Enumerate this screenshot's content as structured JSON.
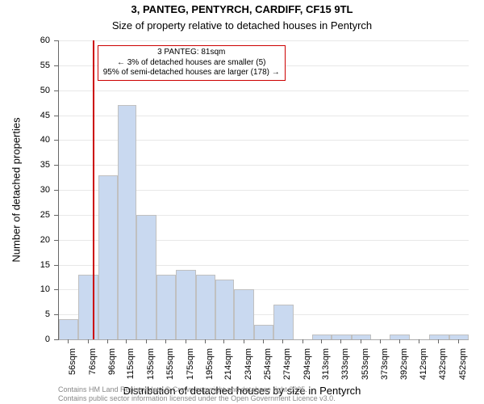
{
  "title_line1": "3, PANTEG, PENTYRCH, CARDIFF, CF15 9TL",
  "title_line2": "Size of property relative to detached houses in Pentyrch",
  "title_fontsize": 13,
  "subtitle_fontsize": 13,
  "chart": {
    "type": "histogram",
    "background_color": "#ffffff",
    "plot_bg": "#ffffff",
    "bar_fill": "#c9d9f0",
    "bar_stroke": "#c0c0c0",
    "bar_stroke_width": 1,
    "grid_color": "#d9d9d9",
    "marker_color": "#cc0000",
    "annotation_border": "#cc0000",
    "x_min": 46,
    "x_max": 462,
    "y_min": 0,
    "y_max": 60,
    "y_ticks": [
      0,
      5,
      10,
      15,
      20,
      25,
      30,
      35,
      40,
      45,
      50,
      55,
      60
    ],
    "x_ticks": [
      {
        "pos": 56,
        "label": "56sqm"
      },
      {
        "pos": 76,
        "label": "76sqm"
      },
      {
        "pos": 96,
        "label": "96sqm"
      },
      {
        "pos": 115,
        "label": "115sqm"
      },
      {
        "pos": 135,
        "label": "135sqm"
      },
      {
        "pos": 155,
        "label": "155sqm"
      },
      {
        "pos": 175,
        "label": "175sqm"
      },
      {
        "pos": 195,
        "label": "195sqm"
      },
      {
        "pos": 214,
        "label": "214sqm"
      },
      {
        "pos": 234,
        "label": "234sqm"
      },
      {
        "pos": 254,
        "label": "254sqm"
      },
      {
        "pos": 274,
        "label": "274sqm"
      },
      {
        "pos": 294,
        "label": "294sqm"
      },
      {
        "pos": 313,
        "label": "313sqm"
      },
      {
        "pos": 333,
        "label": "333sqm"
      },
      {
        "pos": 353,
        "label": "353sqm"
      },
      {
        "pos": 373,
        "label": "373sqm"
      },
      {
        "pos": 392,
        "label": "392sqm"
      },
      {
        "pos": 412,
        "label": "412sqm"
      },
      {
        "pos": 432,
        "label": "432sqm"
      },
      {
        "pos": 452,
        "label": "452sqm"
      }
    ],
    "bars": [
      {
        "x0": 46,
        "x1": 66,
        "y": 4
      },
      {
        "x0": 66,
        "x1": 86,
        "y": 13
      },
      {
        "x0": 86,
        "x1": 106,
        "y": 33
      },
      {
        "x0": 106,
        "x1": 125,
        "y": 47
      },
      {
        "x0": 125,
        "x1": 145,
        "y": 25
      },
      {
        "x0": 145,
        "x1": 165,
        "y": 13
      },
      {
        "x0": 165,
        "x1": 185,
        "y": 14
      },
      {
        "x0": 185,
        "x1": 205,
        "y": 13
      },
      {
        "x0": 205,
        "x1": 224,
        "y": 12
      },
      {
        "x0": 224,
        "x1": 244,
        "y": 10
      },
      {
        "x0": 244,
        "x1": 264,
        "y": 3
      },
      {
        "x0": 264,
        "x1": 284,
        "y": 7
      },
      {
        "x0": 284,
        "x1": 303,
        "y": 0
      },
      {
        "x0": 303,
        "x1": 323,
        "y": 1
      },
      {
        "x0": 323,
        "x1": 343,
        "y": 1
      },
      {
        "x0": 343,
        "x1": 363,
        "y": 1
      },
      {
        "x0": 363,
        "x1": 382,
        "y": 0
      },
      {
        "x0": 382,
        "x1": 402,
        "y": 1
      },
      {
        "x0": 402,
        "x1": 422,
        "y": 0
      },
      {
        "x0": 422,
        "x1": 442,
        "y": 1
      },
      {
        "x0": 442,
        "x1": 462,
        "y": 1
      }
    ],
    "marker_x": 81,
    "y_label": "Number of detached properties",
    "x_label": "Distribution of detached houses by size in Pentyrch",
    "axis_label_fontsize": 13,
    "tick_fontsize": 11
  },
  "annotation": {
    "line1": "3 PANTEG: 81sqm",
    "line2": "← 3% of detached houses are smaller (5)",
    "line3": "95% of semi-detached houses are larger (178) →",
    "fontsize": 10
  },
  "footer": {
    "line1": "Contains HM Land Registry data © Crown copyright and database right 2025.",
    "line2": "Contains public sector information licensed under the Open Government Licence v3.0.",
    "fontsize": 9,
    "color": "#888888"
  }
}
